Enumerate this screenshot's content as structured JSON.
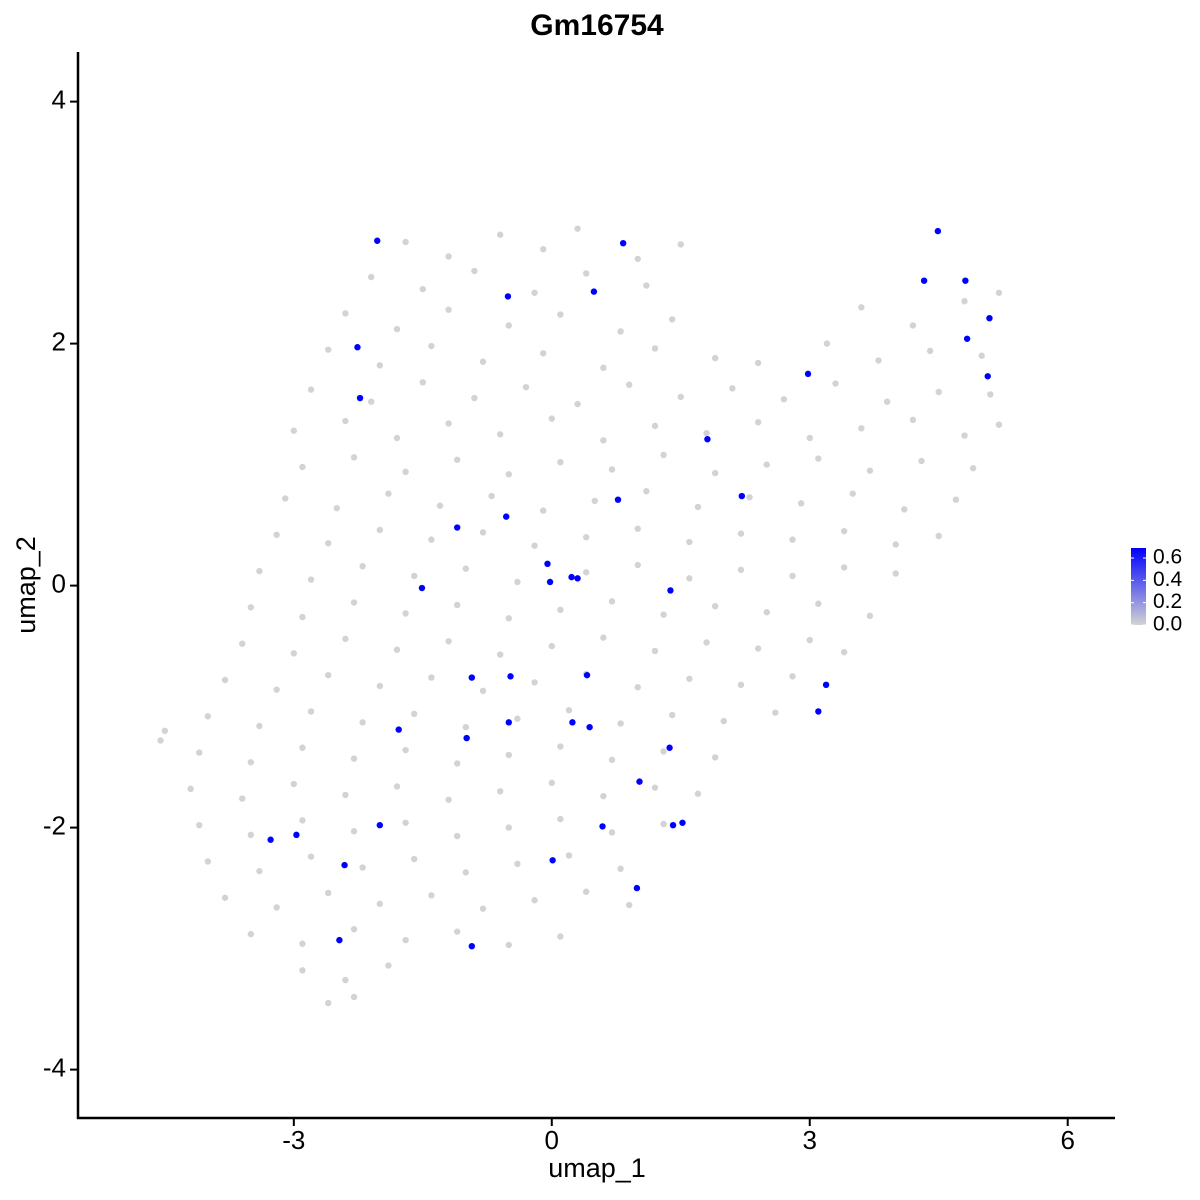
{
  "chart_data": {
    "type": "scatter",
    "title": "Gm16754",
    "xlabel": "umap_1",
    "ylabel": "umap_2",
    "xlim": [
      -5.51,
      6.55
    ],
    "ylim": [
      -4.4,
      4.41
    ],
    "xticks": [
      -3,
      0,
      3,
      6
    ],
    "yticks": [
      -4,
      -2,
      0,
      2,
      4
    ],
    "x": [
      -1.7,
      -1.2,
      -0.6,
      -0.1,
      0.3,
      1.0,
      1.5,
      -2.1,
      -1.5,
      -0.9,
      -0.2,
      0.4,
      1.1,
      -2.4,
      -1.8,
      -1.2,
      -0.5,
      0.1,
      0.8,
      1.4,
      3.6,
      4.2,
      4.8,
      5.2,
      -2.6,
      -2.0,
      -1.4,
      -0.8,
      -0.1,
      0.6,
      1.2,
      1.9,
      2.4,
      3.2,
      3.8,
      4.4,
      5.0,
      -2.8,
      -2.1,
      -1.5,
      -0.9,
      -0.3,
      0.3,
      0.9,
      1.5,
      2.1,
      2.7,
      3.3,
      3.9,
      4.5,
      5.1,
      -3.0,
      -2.4,
      -1.8,
      -1.2,
      -0.6,
      0.0,
      0.6,
      1.2,
      1.8,
      2.4,
      3.0,
      3.6,
      4.2,
      4.8,
      5.2,
      -2.9,
      -2.3,
      -1.7,
      -1.1,
      -0.5,
      0.1,
      0.7,
      1.3,
      1.9,
      2.5,
      3.1,
      3.7,
      4.3,
      4.9,
      -3.1,
      -2.5,
      -1.9,
      -1.3,
      -0.7,
      -0.1,
      0.5,
      1.1,
      1.7,
      2.3,
      2.9,
      3.5,
      4.1,
      4.7,
      -3.2,
      -2.6,
      -2.0,
      -1.4,
      -0.8,
      -0.2,
      0.4,
      1.0,
      1.6,
      2.2,
      2.8,
      3.4,
      4.0,
      4.5,
      -3.4,
      -2.8,
      -2.2,
      -1.6,
      -1.0,
      -0.4,
      0.4,
      1.0,
      1.6,
      2.2,
      2.8,
      3.4,
      4.0,
      -3.5,
      -2.9,
      -2.3,
      -1.7,
      -1.1,
      -0.5,
      0.1,
      0.7,
      1.3,
      1.9,
      2.5,
      3.1,
      3.7,
      -3.6,
      -3.0,
      -2.4,
      -1.8,
      -1.2,
      -0.6,
      0.0,
      0.6,
      1.2,
      1.8,
      2.4,
      3.0,
      3.4,
      -3.8,
      -3.2,
      -2.6,
      -2.0,
      -1.4,
      -0.8,
      -0.2,
      0.4,
      1.0,
      1.6,
      2.2,
      2.8,
      -4.0,
      -3.4,
      -2.8,
      -2.2,
      -1.6,
      -1.0,
      -0.4,
      0.2,
      0.8,
      1.4,
      2.0,
      2.6,
      -4.55,
      -4.5,
      -4.1,
      -3.5,
      -2.9,
      -2.3,
      -1.7,
      -1.1,
      -0.5,
      0.1,
      0.7,
      1.3,
      1.9,
      -4.2,
      -3.6,
      -3.0,
      -2.4,
      -1.8,
      -1.2,
      -0.6,
      0.0,
      0.6,
      1.2,
      1.7,
      -4.1,
      -3.5,
      -2.9,
      -2.3,
      -1.7,
      -1.1,
      -0.5,
      0.1,
      0.7,
      1.3,
      -4.0,
      -3.4,
      -2.8,
      -2.2,
      -1.6,
      -1.0,
      -0.4,
      0.2,
      0.8,
      -3.8,
      -3.2,
      -2.6,
      -2.0,
      -1.4,
      -0.8,
      -0.2,
      0.4,
      0.9,
      -3.5,
      -2.9,
      -2.3,
      -1.7,
      -1.1,
      -0.5,
      0.1,
      -2.9,
      -2.4,
      -1.9,
      -2.6,
      -2.3,
      -2.03,
      0.83,
      -0.51,
      0.49,
      -2.26,
      -2.23,
      4.49,
      4.33,
      4.81,
      5.09,
      4.83,
      5.07,
      2.98,
      1.81,
      2.21,
      0.77,
      -0.53,
      -1.1,
      -0.05,
      -0.02,
      0.23,
      0.3,
      -1.51,
      1.38,
      -0.93,
      -0.48,
      0.41,
      3.19,
      3.1,
      -0.5,
      0.24,
      0.44,
      -1.78,
      -0.99,
      1.37,
      1.02,
      -2.0,
      0.59,
      1.41,
      1.52,
      -2.97,
      -3.27,
      -2.41,
      0.01,
      0.99,
      -2.47,
      -0.93
    ],
    "y": [
      2.84,
      2.72,
      2.9,
      2.78,
      2.95,
      2.7,
      2.82,
      2.55,
      2.45,
      2.6,
      2.42,
      2.58,
      2.48,
      2.25,
      2.12,
      2.28,
      2.15,
      2.24,
      2.1,
      2.2,
      2.3,
      2.15,
      2.35,
      2.42,
      1.95,
      1.82,
      1.98,
      1.85,
      1.92,
      1.8,
      1.96,
      1.88,
      1.84,
      2.0,
      1.86,
      1.94,
      1.9,
      1.62,
      1.52,
      1.68,
      1.55,
      1.64,
      1.5,
      1.66,
      1.56,
      1.63,
      1.54,
      1.67,
      1.52,
      1.6,
      1.58,
      1.28,
      1.36,
      1.22,
      1.34,
      1.25,
      1.38,
      1.2,
      1.32,
      1.26,
      1.35,
      1.22,
      1.3,
      1.37,
      1.24,
      1.33,
      0.98,
      1.06,
      0.94,
      1.04,
      0.92,
      1.02,
      0.96,
      1.08,
      0.93,
      1.0,
      1.05,
      0.95,
      1.03,
      0.97,
      0.72,
      0.64,
      0.76,
      0.66,
      0.74,
      0.62,
      0.7,
      0.78,
      0.65,
      0.73,
      0.68,
      0.76,
      0.63,
      0.71,
      0.42,
      0.35,
      0.46,
      0.38,
      0.44,
      0.33,
      0.4,
      0.47,
      0.36,
      0.43,
      0.38,
      0.45,
      0.34,
      0.41,
      0.12,
      0.05,
      0.16,
      0.08,
      0.14,
      0.03,
      0.11,
      0.17,
      0.06,
      0.13,
      0.08,
      0.15,
      0.1,
      -0.18,
      -0.26,
      -0.14,
      -0.23,
      -0.16,
      -0.27,
      -0.2,
      -0.13,
      -0.24,
      -0.17,
      -0.22,
      -0.15,
      -0.25,
      -0.48,
      -0.56,
      -0.44,
      -0.53,
      -0.46,
      -0.57,
      -0.5,
      -0.43,
      -0.54,
      -0.47,
      -0.52,
      -0.45,
      -0.55,
      -0.78,
      -0.86,
      -0.74,
      -0.83,
      -0.76,
      -0.87,
      -0.8,
      -0.73,
      -0.84,
      -0.77,
      -0.82,
      -0.75,
      -1.08,
      -1.16,
      -1.04,
      -1.13,
      -1.06,
      -1.17,
      -1.1,
      -1.03,
      -1.14,
      -1.07,
      -1.12,
      -1.05,
      -1.28,
      -1.2,
      -1.38,
      -1.46,
      -1.34,
      -1.43,
      -1.36,
      -1.47,
      -1.4,
      -1.33,
      -1.44,
      -1.37,
      -1.42,
      -1.68,
      -1.76,
      -1.64,
      -1.73,
      -1.66,
      -1.77,
      -1.7,
      -1.63,
      -1.74,
      -1.67,
      -1.72,
      -1.98,
      -2.06,
      -1.94,
      -2.03,
      -1.96,
      -2.07,
      -2.0,
      -1.93,
      -2.04,
      -1.97,
      -2.28,
      -2.36,
      -2.24,
      -2.33,
      -2.26,
      -2.37,
      -2.3,
      -2.23,
      -2.34,
      -2.58,
      -2.66,
      -2.54,
      -2.63,
      -2.56,
      -2.67,
      -2.6,
      -2.53,
      -2.64,
      -2.88,
      -2.96,
      -2.84,
      -2.93,
      -2.86,
      -2.97,
      -2.9,
      -3.18,
      -3.26,
      -3.14,
      -3.45,
      -3.4,
      2.85,
      2.83,
      2.39,
      2.43,
      1.97,
      1.55,
      2.93,
      2.52,
      2.52,
      2.21,
      2.04,
      1.73,
      1.75,
      1.21,
      0.74,
      0.71,
      0.57,
      0.48,
      0.18,
      0.03,
      0.07,
      0.06,
      -0.02,
      -0.04,
      -0.76,
      -0.75,
      -0.74,
      -0.82,
      -1.04,
      -1.13,
      -1.13,
      -1.17,
      -1.19,
      -1.26,
      -1.34,
      -1.62,
      -1.98,
      -1.99,
      -1.98,
      -1.96,
      -2.06,
      -2.1,
      -2.31,
      -2.27,
      -2.5,
      -2.93,
      -2.98
    ],
    "expression": [
      0,
      0,
      0,
      0,
      0,
      0,
      0,
      0,
      0,
      0,
      0,
      0,
      0,
      0,
      0,
      0,
      0,
      0,
      0,
      0,
      0,
      0,
      0,
      0,
      0,
      0,
      0,
      0,
      0,
      0,
      0,
      0,
      0,
      0,
      0,
      0,
      0,
      0,
      0,
      0,
      0,
      0,
      0,
      0,
      0,
      0,
      0,
      0,
      0,
      0,
      0,
      0,
      0,
      0,
      0,
      0,
      0,
      0,
      0,
      0,
      0,
      0,
      0,
      0,
      0,
      0,
      0,
      0,
      0,
      0,
      0,
      0,
      0,
      0,
      0,
      0,
      0,
      0,
      0,
      0,
      0,
      0,
      0,
      0,
      0,
      0,
      0,
      0,
      0,
      0,
      0,
      0,
      0,
      0,
      0,
      0,
      0,
      0,
      0,
      0,
      0,
      0,
      0,
      0,
      0,
      0,
      0,
      0,
      0,
      0,
      0,
      0,
      0,
      0,
      0,
      0,
      0,
      0,
      0,
      0,
      0,
      0,
      0,
      0,
      0,
      0,
      0,
      0,
      0,
      0,
      0,
      0,
      0,
      0,
      0,
      0,
      0,
      0,
      0,
      0,
      0,
      0,
      0,
      0,
      0,
      0,
      0,
      0,
      0,
      0,
      0,
      0,
      0,
      0,
      0,
      0,
      0,
      0,
      0,
      0,
      0,
      0,
      0,
      0,
      0,
      0,
      0,
      0,
      0,
      0,
      0,
      0,
      0,
      0,
      0,
      0,
      0,
      0,
      0,
      0,
      0,
      0,
      0,
      0,
      0,
      0,
      0,
      0,
      0,
      0,
      0,
      0,
      0,
      0,
      0,
      0,
      0,
      0,
      0,
      0,
      0,
      0,
      0,
      0,
      0,
      0,
      0,
      0,
      0,
      0,
      0,
      0,
      0,
      0,
      0,
      0,
      0,
      0,
      0,
      0,
      0,
      0,
      0,
      0,
      0,
      0,
      0,
      0,
      0,
      0,
      0,
      0,
      0,
      0,
      0,
      0.69,
      0.69,
      0.69,
      0.69,
      0.69,
      0.69,
      0.69,
      0.69,
      0.69,
      0.69,
      0.69,
      0.69,
      0.69,
      0.69,
      0.69,
      0.69,
      0.69,
      0.69,
      0.69,
      0.69,
      0.69,
      0.69,
      0.69,
      0.69,
      0.69,
      0.69,
      0.69,
      0.69,
      0.69,
      0.69,
      0.69,
      0.69,
      0.69,
      0.69,
      0.69,
      0.69,
      0.69,
      0.69,
      0.69,
      0.69,
      0.69,
      0.69,
      0.69,
      0.69,
      0.69,
      0.69,
      0.69
    ],
    "colorbar": {
      "low": "#d3d3d3",
      "high": "#0000ff",
      "lim": [
        0,
        0.69
      ],
      "ticks": [
        {
          "value": 0,
          "label": "0.0"
        },
        0.2,
        0.4,
        0.6
      ]
    }
  }
}
